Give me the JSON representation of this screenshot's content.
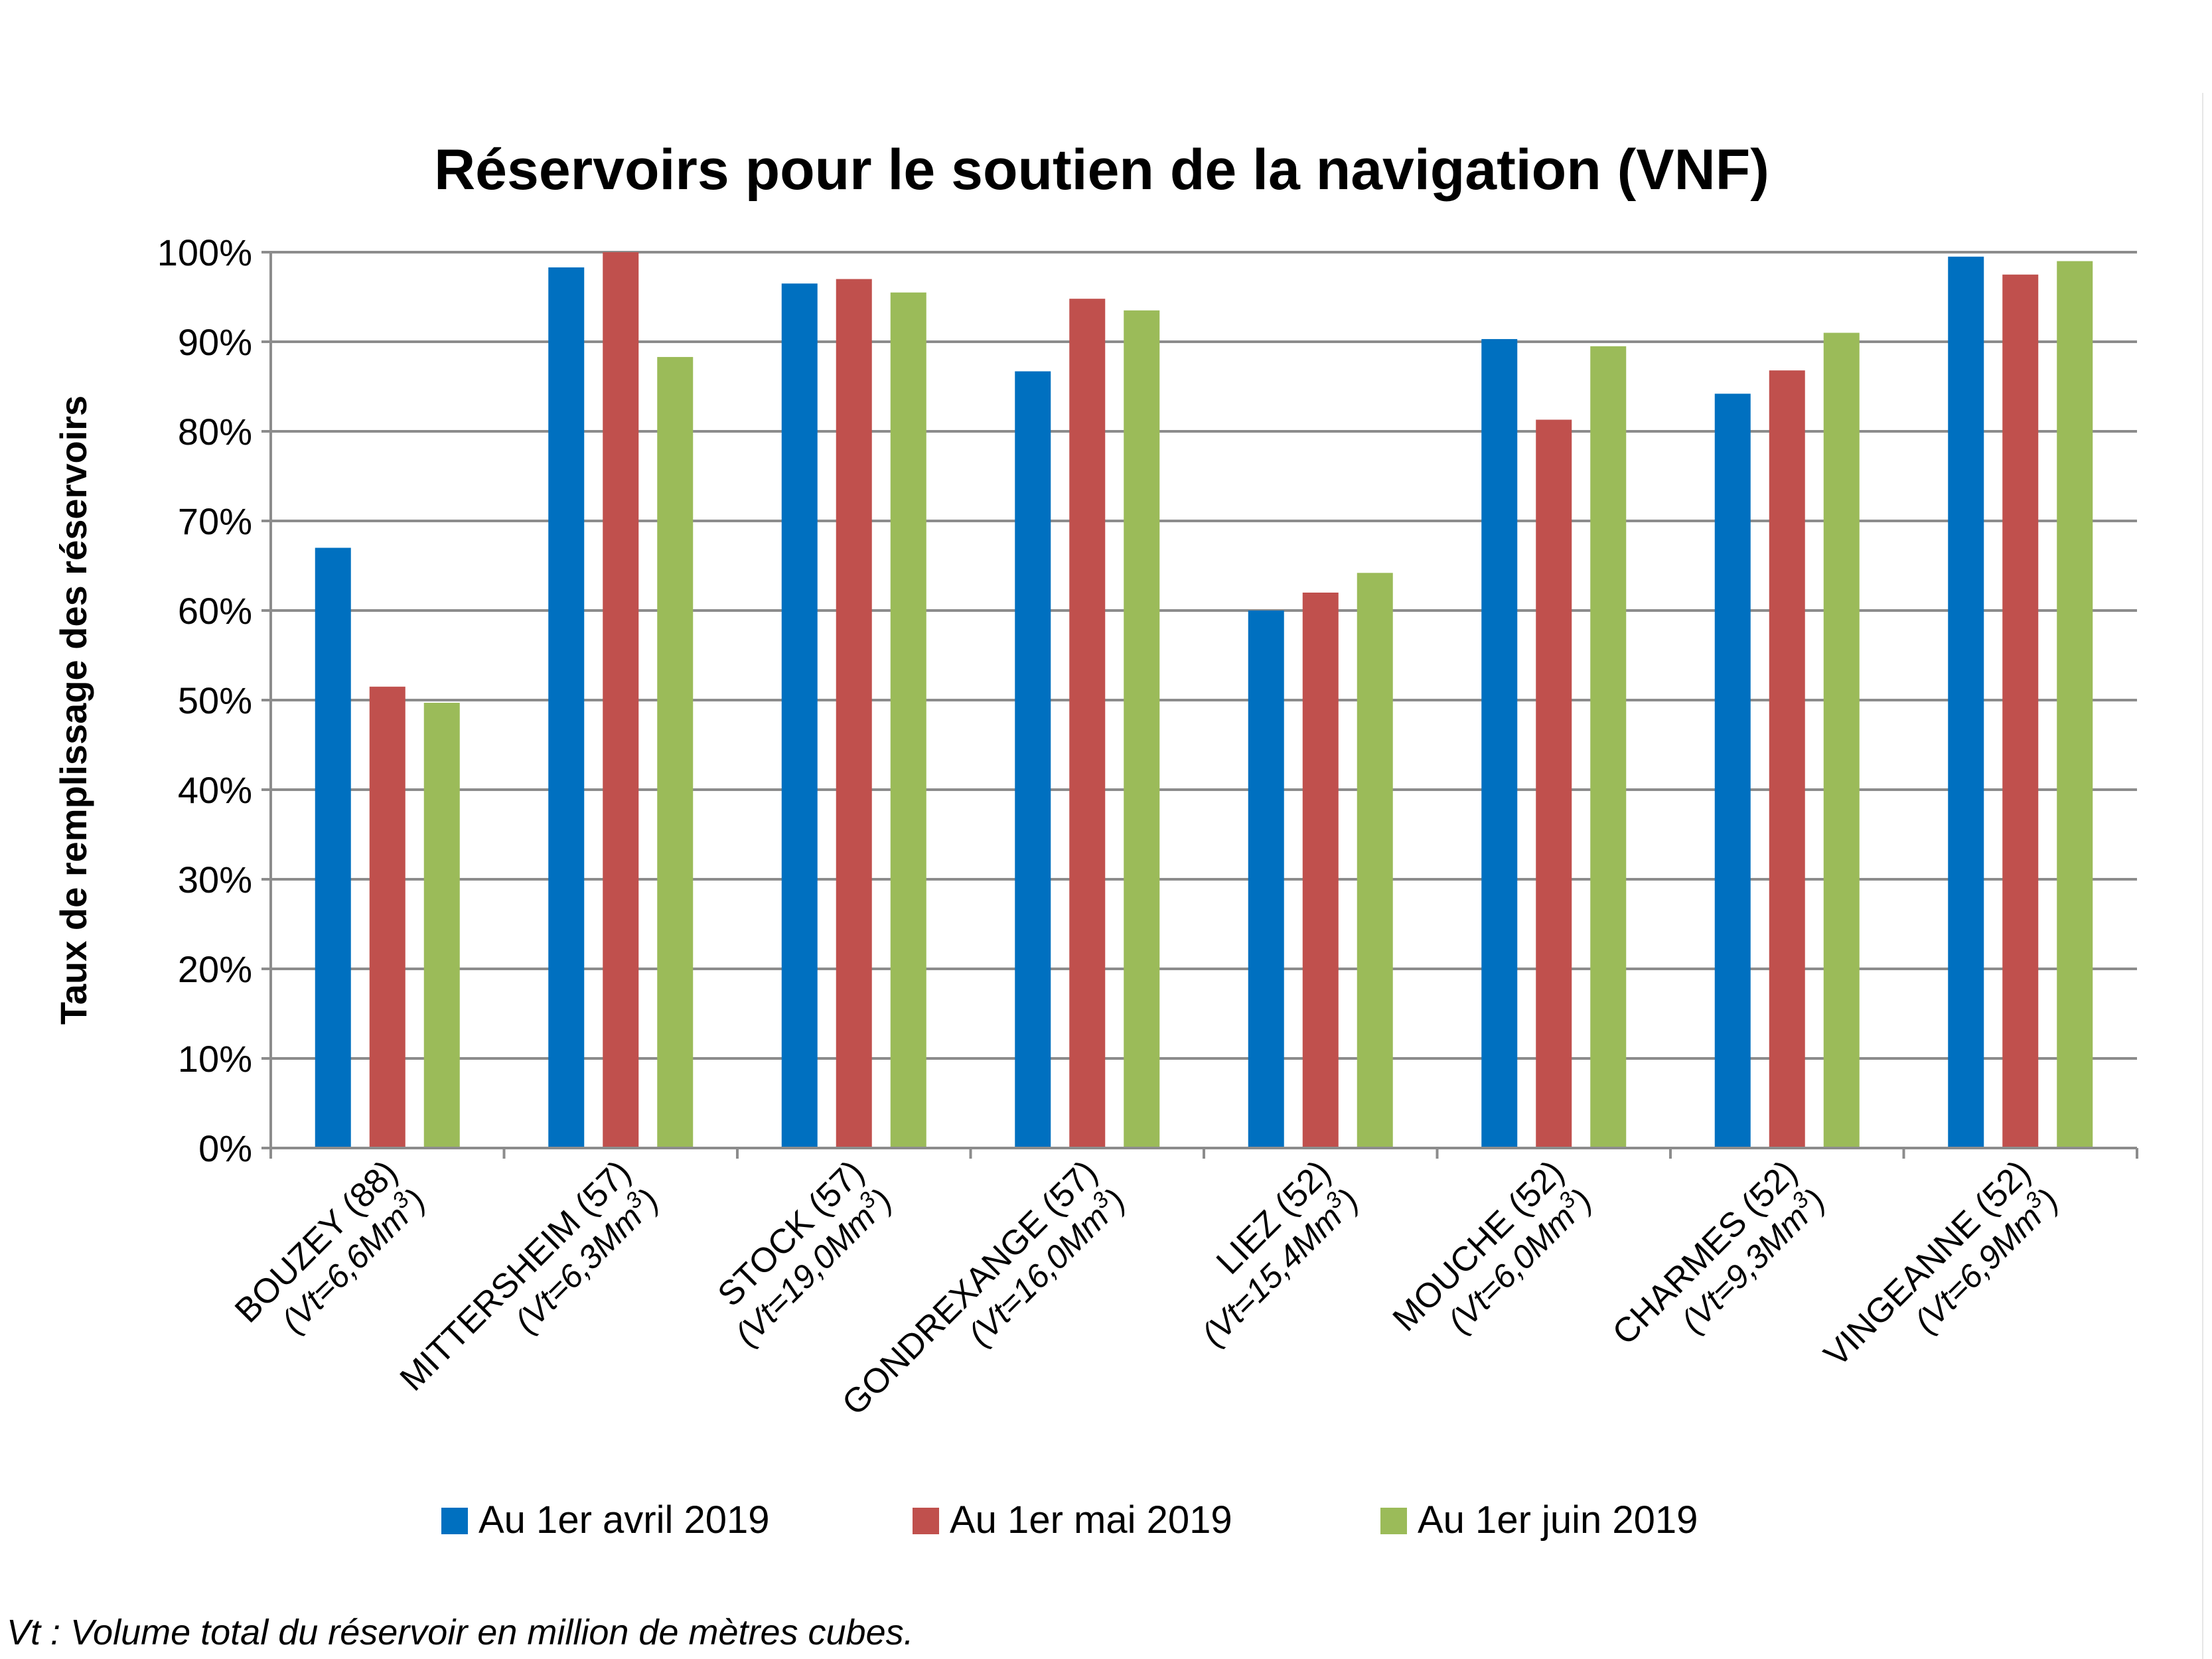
{
  "chart_data": {
    "type": "bar",
    "title": "Réservoirs pour le soutien de la navigation (VNF)",
    "ylabel": "Taux de remplissage des réservoirs",
    "xlabel": "",
    "ylim": [
      0,
      100
    ],
    "yticks": [
      "0%",
      "10%",
      "20%",
      "30%",
      "40%",
      "50%",
      "60%",
      "70%",
      "80%",
      "90%",
      "100%"
    ],
    "grid": true,
    "legend_position": "bottom",
    "categories": [
      {
        "name": "BOUZEY (88)",
        "volume_prefix": "(Vt=6,6Mm",
        "volume_sup": "3",
        "volume_suffix": ")"
      },
      {
        "name": "MITTERSHEIM (57)",
        "volume_prefix": "(Vt=6,3Mm",
        "volume_sup": "3",
        "volume_suffix": ")"
      },
      {
        "name": "STOCK (57)",
        "volume_prefix": "(Vt=19,0Mm",
        "volume_sup": "3",
        "volume_suffix": ")"
      },
      {
        "name": "GONDREXANGE (57)",
        "volume_prefix": "(Vt=16,0Mm",
        "volume_sup": "3",
        "volume_suffix": ")"
      },
      {
        "name": "LIEZ (52)",
        "volume_prefix": "(Vt=15,4Mm",
        "volume_sup": "3",
        "volume_suffix": ")"
      },
      {
        "name": "MOUCHE (52)",
        "volume_prefix": "(Vt=6,0Mm",
        "volume_sup": "3",
        "volume_suffix": ")"
      },
      {
        "name": "CHARMES (52)",
        "volume_prefix": "(Vt=9,3Mm",
        "volume_sup": "3",
        "volume_suffix": ")"
      },
      {
        "name": "VINGEANNE (52)",
        "volume_prefix": "(Vt=6,9Mm",
        "volume_sup": "3",
        "volume_suffix": ")"
      }
    ],
    "series": [
      {
        "name": "Au 1er avril 2019",
        "color": "#0070C0",
        "values": [
          67,
          98.3,
          96.5,
          86.7,
          60,
          90.3,
          84.2,
          99.5
        ]
      },
      {
        "name": "Au 1er mai 2019",
        "color": "#C0504D",
        "values": [
          51.5,
          100,
          97,
          94.8,
          62,
          81.3,
          86.8,
          97.5
        ]
      },
      {
        "name": "Au 1er juin 2019",
        "color": "#9BBB59",
        "values": [
          49.7,
          88.3,
          95.5,
          93.5,
          64.2,
          89.5,
          91,
          99
        ]
      }
    ],
    "footnote": "Vt : Volume total du réservoir en million de mètres cubes."
  }
}
